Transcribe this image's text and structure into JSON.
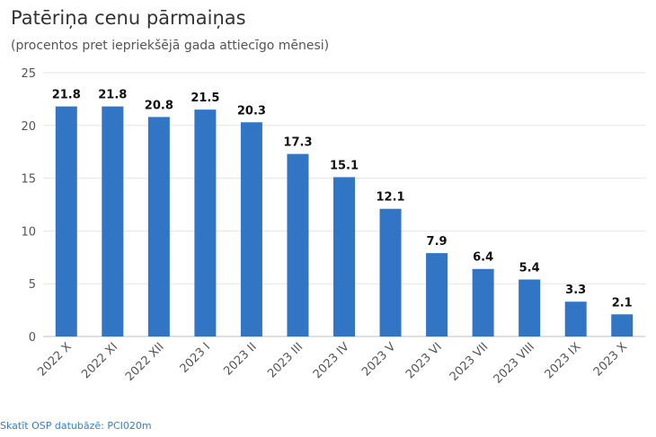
{
  "header": {
    "title": "Patēriņa cenu pārmaiņas",
    "subtitle": "(procentos pret iepriekšējā gada attiecīgo mēnesi)"
  },
  "footer": {
    "source_link": "Skatīt OSP datubāzē: PCI020m"
  },
  "colors": {
    "bar": "#3275c4",
    "grid": "#e6e6e6",
    "axis": "#c0c0c0",
    "link": "#3b7fc4"
  },
  "chart_data": {
    "type": "bar",
    "title": "Patēriņa cenu pārmaiņas",
    "subtitle": "(procentos pret iepriekšējā gada attiecīgo mēnesi)",
    "xlabel": "",
    "ylabel": "",
    "categories": [
      "2022 X",
      "2022 XI",
      "2022 XII",
      "2023 I",
      "2023 II",
      "2023 III",
      "2023 IV",
      "2023 V",
      "2023 VI",
      "2023 VII",
      "2023 VIII",
      "2023 IX",
      "2023 X"
    ],
    "values": [
      21.8,
      21.8,
      20.8,
      21.5,
      20.3,
      17.3,
      15.1,
      12.1,
      7.9,
      6.4,
      5.4,
      3.3,
      2.1
    ],
    "data_labels": [
      "21.8",
      "21.8",
      "20.8",
      "21.5",
      "20.3",
      "17.3",
      "15.1",
      "12.1",
      "7.9",
      "6.4",
      "5.4",
      "3.3",
      "2.1"
    ],
    "ylim": [
      0,
      25
    ],
    "yticks": [
      0,
      5,
      10,
      15,
      20,
      25
    ],
    "grid": true,
    "legend": "none"
  }
}
